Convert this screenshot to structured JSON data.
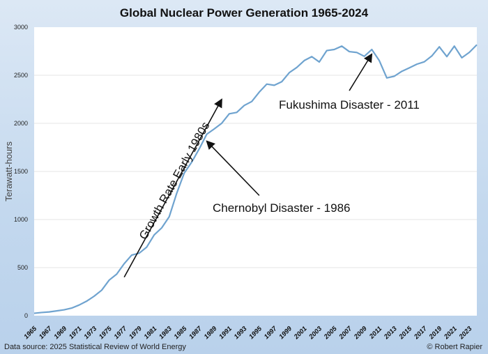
{
  "chart_data": {
    "type": "line",
    "title": "Global Nuclear Power Generation 1965-2024",
    "xlabel": "",
    "ylabel": "Terawatt-hours",
    "ylim": [
      0,
      3000
    ],
    "yticks": [
      0,
      500,
      1000,
      1500,
      2000,
      2500,
      3000
    ],
    "xlim": [
      1965,
      2024
    ],
    "xtick_labels": [
      "1965",
      "1967",
      "1969",
      "1971",
      "1973",
      "1975",
      "1977",
      "1979",
      "1981",
      "1983",
      "1985",
      "1987",
      "1989",
      "1991",
      "1993",
      "1995",
      "1997",
      "1999",
      "2001",
      "2003",
      "2005",
      "2007",
      "2009",
      "2011",
      "2013",
      "2015",
      "2017",
      "2019",
      "2021",
      "2023"
    ],
    "grid": "horizontal",
    "line_color": "#6fa3cf",
    "x": [
      1965,
      1966,
      1967,
      1968,
      1969,
      1970,
      1971,
      1972,
      1973,
      1974,
      1975,
      1976,
      1977,
      1978,
      1979,
      1980,
      1981,
      1982,
      1983,
      1984,
      1985,
      1986,
      1987,
      1988,
      1989,
      1990,
      1991,
      1992,
      1993,
      1994,
      1995,
      1996,
      1997,
      1998,
      1999,
      2000,
      2001,
      2002,
      2003,
      2004,
      2005,
      2006,
      2007,
      2008,
      2009,
      2010,
      2011,
      2012,
      2013,
      2014,
      2015,
      2016,
      2017,
      2018,
      2019,
      2020,
      2021,
      2022,
      2023,
      2024
    ],
    "values": [
      25,
      33,
      39,
      50,
      61,
      79,
      111,
      151,
      203,
      265,
      370,
      432,
      541,
      630,
      650,
      713,
      840,
      913,
      1029,
      1273,
      1483,
      1597,
      1735,
      1887,
      1942,
      2001,
      2099,
      2114,
      2186,
      2227,
      2325,
      2408,
      2396,
      2433,
      2527,
      2581,
      2653,
      2694,
      2638,
      2757,
      2768,
      2803,
      2746,
      2737,
      2697,
      2768,
      2652,
      2472,
      2490,
      2541,
      2577,
      2615,
      2640,
      2701,
      2796,
      2694,
      2803,
      2682,
      2738,
      2817
    ],
    "annotations": [
      {
        "text": "Growth Rate Early 1980s",
        "from": [
          1977,
          400
        ],
        "to": [
          1990,
          2250
        ]
      },
      {
        "text": "Chernobyl Disaster - 1986",
        "from": [
          1995,
          1250
        ],
        "to": [
          1988,
          1815
        ]
      },
      {
        "text": "Fukushima Disaster - 2011",
        "from": [
          2007,
          2340
        ],
        "to": [
          2010,
          2720
        ]
      }
    ]
  },
  "footer": {
    "source": "Data source: 2025 Statistical Review of World Energy",
    "credit": "© Robert Rapier"
  }
}
